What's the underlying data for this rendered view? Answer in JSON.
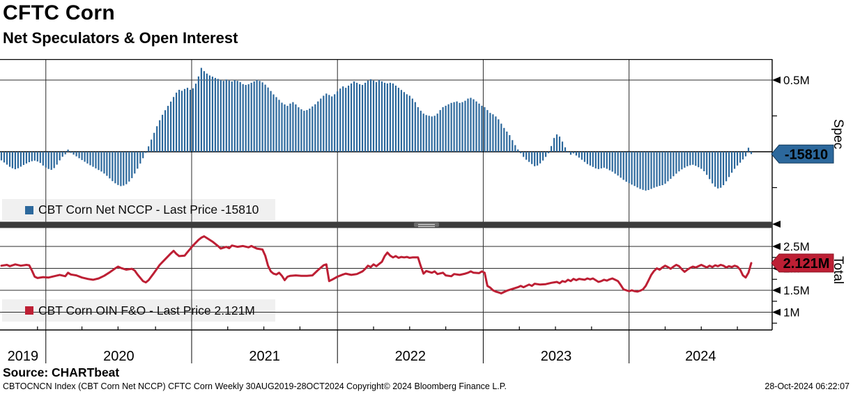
{
  "header": {
    "title": "CFTC Corn",
    "subtitle": "Net Speculators & Open Interest"
  },
  "footer": {
    "source": "Source: CHARTbeat",
    "ticker_info": "CBTOCNCN Index (CBT Corn Net NCCP) CFTC Corn  Weekly 30AUG2019-28OCT2024",
    "copyright": "Copyright© 2024 Bloomberg Finance L.P.",
    "timestamp": "28-Oct-2024 06:22:07"
  },
  "chart_data": {
    "type": "combo",
    "title": "CFTC Corn - Net Speculators & Open Interest",
    "x": {
      "unit": "weeks",
      "start": "30AUG2019",
      "end": "28OCT2024",
      "total_weeks": 270,
      "year_labels": [
        "2019",
        "2020",
        "2021",
        "2022",
        "2023",
        "2024"
      ],
      "year_boundary_weeks": [
        16,
        68.5,
        121,
        173.5,
        226
      ],
      "quarter_tick_weeks": [
        13,
        29,
        42,
        55.5,
        81.5,
        94.5,
        107.5,
        134,
        147,
        160,
        186.5,
        199.5,
        212.5,
        239,
        252,
        265
      ]
    },
    "panels": [
      {
        "id": "spec",
        "type": "bar",
        "axis_title": "Spec",
        "color": "#2c689c",
        "legend": "CBT Corn Net NCCP - Last Price -15810",
        "last_price": -15810,
        "last_price_label": "-15810",
        "ylim": [
          -485000,
          645000
        ],
        "grid": true,
        "legend_position": "bottom-left",
        "gridline_values": [
          500000,
          0
        ],
        "ticks": [
          {
            "v": 500000,
            "label": "0.5M",
            "arrow": true
          },
          {
            "v": 250000,
            "label": "",
            "arrow": false
          },
          {
            "v": -250000,
            "label": "",
            "arrow": false
          }
        ],
        "values_unit": "thousands_of_contracts",
        "values_k": [
          -60,
          -75,
          -90,
          -105,
          -115,
          -122,
          -115,
          -104,
          -92,
          -82,
          -73,
          -66,
          -62,
          -68,
          -78,
          -96,
          -110,
          -120,
          -126,
          -114,
          -90,
          -60,
          -35,
          -18,
          15,
          -8,
          -20,
          -32,
          -45,
          -58,
          -70,
          -82,
          -94,
          -105,
          -116,
          -127,
          -138,
          -152,
          -168,
          -186,
          -205,
          -220,
          -232,
          -240,
          -236,
          -226,
          -208,
          -184,
          -152,
          -118,
          -82,
          -45,
          -8,
          38,
          85,
          132,
          178,
          220,
          258,
          290,
          320,
          350,
          382,
          412,
          432,
          425,
          438,
          446,
          432,
          442,
          475,
          525,
          585,
          562,
          545,
          532,
          524,
          515,
          508,
          500,
          494,
          504,
          496,
          490,
          500,
          494,
          486,
          472,
          466,
          471,
          481,
          491,
          501,
          494,
          484,
          468,
          448,
          424,
          400,
          381,
          362,
          342,
          330,
          320,
          336,
          346,
          330,
          310,
          296,
          286,
          291,
          301,
          316,
          331,
          351,
          371,
          391,
          406,
          396,
          386,
          401,
          421,
          441,
          456,
          446,
          461,
          476,
          491,
          481,
          471,
          466,
          481,
          496,
          506,
          496,
          486,
          501,
          491,
          481,
          476,
          481,
          476,
          461,
          446,
          431,
          416,
          401,
          391,
          371,
          346,
          311,
          286,
          266,
          256,
          251,
          246,
          251,
          266,
          291,
          311,
          321,
          331,
          341,
          346,
          351,
          341,
          346,
          356,
          371,
          376,
          366,
          351,
          336,
          321,
          311,
          291,
          271,
          261,
          246,
          226,
          196,
          166,
          141,
          116,
          81,
          46,
          16,
          -10,
          -36,
          -56,
          -71,
          -86,
          -101,
          -96,
          -81,
          -61,
          -36,
          -10,
          40,
          96,
          121,
          106,
          71,
          31,
          -6,
          -21,
          -11,
          -26,
          -41,
          -56,
          -71,
          -86,
          -96,
          -106,
          -116,
          -121,
          -116,
          -111,
          -119,
          -129,
          -139,
          -153,
          -166,
          -181,
          -196,
          -209,
          -219,
          -229,
          -239,
          -249,
          -259,
          -266,
          -271,
          -267,
          -259,
          -251,
          -244,
          -238,
          -233,
          -223,
          -206,
          -189,
          -171,
          -153,
          -137,
          -123,
          -111,
          -101,
          -94,
          -91,
          -98,
          -108,
          -119,
          -136,
          -161,
          -191,
          -221,
          -244,
          -256,
          -251,
          -233,
          -206,
          -176,
          -146,
          -119,
          -96,
          -76,
          -54,
          -32,
          28,
          -15.81
        ]
      },
      {
        "id": "total",
        "type": "line",
        "axis_title": "Total",
        "color": "#bd1f34",
        "legend": "CBT Corn OIN F&O - Last Price 2.121M",
        "last_price": 2121000,
        "last_price_label": "2.121M",
        "ylim": [
          595000,
          2920000
        ],
        "grid": true,
        "legend_position": "bottom-left",
        "gridline_values": [
          2500000,
          2000000,
          1500000,
          1000000
        ],
        "ticks": [
          {
            "v": 2500000,
            "label": "2.5M",
            "arrow": true
          },
          {
            "v": 2000000,
            "label": "2M",
            "arrow": true
          },
          {
            "v": 1500000,
            "label": "1.5M",
            "arrow": true
          },
          {
            "v": 1000000,
            "label": "1M",
            "arrow": true
          },
          {
            "v": 2250000,
            "label": "",
            "arrow": false
          },
          {
            "v": 1750000,
            "label": "",
            "arrow": false
          },
          {
            "v": 1250000,
            "label": "",
            "arrow": false
          },
          {
            "v": 750000,
            "label": "",
            "arrow": false
          }
        ],
        "points_unit": "millions_of_contracts",
        "points_weeks_millions": [
          [
            0,
            2.06
          ],
          [
            2,
            2.08
          ],
          [
            3,
            2.05
          ],
          [
            5,
            2.09
          ],
          [
            7,
            2.06
          ],
          [
            9,
            2.08
          ],
          [
            10,
            2.07
          ],
          [
            11,
            1.95
          ],
          [
            12,
            1.81
          ],
          [
            13,
            1.78
          ],
          [
            15,
            1.8
          ],
          [
            17,
            1.79
          ],
          [
            19,
            1.82
          ],
          [
            21,
            1.85
          ],
          [
            23,
            1.82
          ],
          [
            24,
            1.9
          ],
          [
            25,
            1.86
          ],
          [
            27,
            1.84
          ],
          [
            29,
            1.79
          ],
          [
            31,
            1.76
          ],
          [
            33,
            1.74
          ],
          [
            35,
            1.77
          ],
          [
            37,
            1.83
          ],
          [
            39,
            1.91
          ],
          [
            41,
            2.0
          ],
          [
            42,
            2.04
          ],
          [
            43,
            2.01
          ],
          [
            45,
            1.97
          ],
          [
            47,
            1.99
          ],
          [
            48,
            1.95
          ],
          [
            49,
            1.86
          ],
          [
            51,
            1.71
          ],
          [
            52,
            1.68
          ],
          [
            53,
            1.73
          ],
          [
            55,
            1.9
          ],
          [
            57,
            2.08
          ],
          [
            59,
            2.21
          ],
          [
            61,
            2.34
          ],
          [
            62,
            2.4
          ],
          [
            63,
            2.33
          ],
          [
            64,
            2.28
          ],
          [
            66,
            2.29
          ],
          [
            67,
            2.37
          ],
          [
            69,
            2.52
          ],
          [
            71,
            2.65
          ],
          [
            72,
            2.7
          ],
          [
            73,
            2.73
          ],
          [
            74,
            2.69
          ],
          [
            76,
            2.61
          ],
          [
            78,
            2.51
          ],
          [
            79,
            2.45
          ],
          [
            81,
            2.49
          ],
          [
            82,
            2.46
          ],
          [
            83,
            2.52
          ],
          [
            85,
            2.49
          ],
          [
            87,
            2.51
          ],
          [
            89,
            2.48
          ],
          [
            90,
            2.51
          ],
          [
            92,
            2.45
          ],
          [
            94,
            2.43
          ],
          [
            95,
            2.29
          ],
          [
            96,
            2.06
          ],
          [
            97,
            1.93
          ],
          [
            98,
            1.88
          ],
          [
            99,
            1.86
          ],
          [
            100,
            1.9
          ],
          [
            101,
            1.83
          ],
          [
            102,
            1.73
          ],
          [
            103,
            1.81
          ],
          [
            104,
            1.83
          ],
          [
            106,
            1.84
          ],
          [
            108,
            1.83
          ],
          [
            110,
            1.83
          ],
          [
            112,
            1.84
          ],
          [
            114,
            1.96
          ],
          [
            116,
            2.07
          ],
          [
            117,
            2.09
          ],
          [
            118,
            1.71
          ],
          [
            119,
            1.74
          ],
          [
            121,
            1.81
          ],
          [
            123,
            1.86
          ],
          [
            124,
            1.88
          ],
          [
            126,
            1.85
          ],
          [
            128,
            1.87
          ],
          [
            130,
            1.93
          ],
          [
            131,
            1.99
          ],
          [
            132,
            2.06
          ],
          [
            133,
            2.03
          ],
          [
            134,
            2.09
          ],
          [
            135,
            2.05
          ],
          [
            136,
            2.1
          ],
          [
            137,
            2.15
          ],
          [
            138,
            2.28
          ],
          [
            139,
            2.36
          ],
          [
            140,
            2.29
          ],
          [
            141,
            2.25
          ],
          [
            142,
            2.28
          ],
          [
            143,
            2.24
          ],
          [
            144,
            2.26
          ],
          [
            145,
            2.25
          ],
          [
            146,
            2.26
          ],
          [
            147,
            2.24
          ],
          [
            148,
            2.25
          ],
          [
            150,
            2.25
          ],
          [
            151,
            2.05
          ],
          [
            152,
            1.88
          ],
          [
            153,
            1.94
          ],
          [
            155,
            1.9
          ],
          [
            156,
            1.93
          ],
          [
            157,
            1.87
          ],
          [
            159,
            1.9
          ],
          [
            160,
            1.84
          ],
          [
            162,
            1.82
          ],
          [
            163,
            1.87
          ],
          [
            165,
            1.85
          ],
          [
            167,
            1.88
          ],
          [
            168,
            1.9
          ],
          [
            169,
            1.93
          ],
          [
            170,
            1.9
          ],
          [
            172,
            1.89
          ],
          [
            173,
            1.93
          ],
          [
            174,
            1.9
          ],
          [
            175,
            1.6
          ],
          [
            176,
            1.56
          ],
          [
            177,
            1.5
          ],
          [
            178,
            1.47
          ],
          [
            179,
            1.45
          ],
          [
            180,
            1.43
          ],
          [
            181,
            1.46
          ],
          [
            182,
            1.49
          ],
          [
            184,
            1.53
          ],
          [
            186,
            1.57
          ],
          [
            187,
            1.6
          ],
          [
            188,
            1.57
          ],
          [
            189,
            1.6
          ],
          [
            190,
            1.63
          ],
          [
            191,
            1.6
          ],
          [
            192,
            1.65
          ],
          [
            194,
            1.63
          ],
          [
            196,
            1.64
          ],
          [
            198,
            1.67
          ],
          [
            200,
            1.69
          ],
          [
            201,
            1.66
          ],
          [
            202,
            1.71
          ],
          [
            203,
            1.69
          ],
          [
            204,
            1.74
          ],
          [
            205,
            1.71
          ],
          [
            206,
            1.76
          ],
          [
            207,
            1.73
          ],
          [
            208,
            1.76
          ],
          [
            210,
            1.74
          ],
          [
            211,
            1.77
          ],
          [
            212,
            1.75
          ],
          [
            213,
            1.77
          ],
          [
            214,
            1.73
          ],
          [
            215,
            1.69
          ],
          [
            216,
            1.71
          ],
          [
            217,
            1.74
          ],
          [
            218,
            1.72
          ],
          [
            219,
            1.75
          ],
          [
            220,
            1.77
          ],
          [
            221,
            1.74
          ],
          [
            222,
            1.71
          ],
          [
            223,
            1.62
          ],
          [
            224,
            1.52
          ],
          [
            225,
            1.5
          ],
          [
            226,
            1.48
          ],
          [
            227,
            1.5
          ],
          [
            228,
            1.48
          ],
          [
            229,
            1.47
          ],
          [
            230,
            1.49
          ],
          [
            231,
            1.52
          ],
          [
            232,
            1.6
          ],
          [
            233,
            1.72
          ],
          [
            234,
            1.85
          ],
          [
            235,
            1.94
          ],
          [
            236,
            2.0
          ],
          [
            237,
            1.97
          ],
          [
            238,
            2.02
          ],
          [
            239,
            2.06
          ],
          [
            240,
            2.03
          ],
          [
            241,
            1.99
          ],
          [
            242,
            2.04
          ],
          [
            243,
            2.08
          ],
          [
            244,
            2.05
          ],
          [
            245,
            1.98
          ],
          [
            246,
            1.92
          ],
          [
            247,
            1.97
          ],
          [
            248,
            2.01
          ],
          [
            249,
            2.04
          ],
          [
            250,
            2.02
          ],
          [
            251,
            2.05
          ],
          [
            252,
            2.08
          ],
          [
            253,
            2.05
          ],
          [
            254,
            2.02
          ],
          [
            255,
            2.06
          ],
          [
            256,
            2.03
          ],
          [
            257,
            2.07
          ],
          [
            258,
            2.05
          ],
          [
            259,
            2.08
          ],
          [
            260,
            2.06
          ],
          [
            261,
            2.02
          ],
          [
            262,
            2.05
          ],
          [
            263,
            2.03
          ],
          [
            264,
            2.06
          ],
          [
            265,
            2.04
          ],
          [
            266,
            1.97
          ],
          [
            267,
            1.84
          ],
          [
            268,
            1.79
          ],
          [
            269,
            1.9
          ],
          [
            270,
            2.121
          ]
        ]
      }
    ]
  }
}
